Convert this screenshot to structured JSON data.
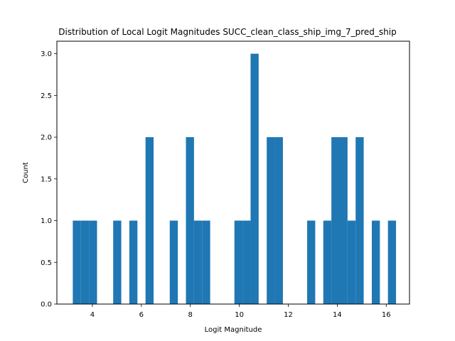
{
  "chart_data": {
    "type": "bar",
    "title": "Distribution of Local Logit Magnitudes SUCC_clean_class_ship_img_7_pred_ship",
    "xlabel": "Logit Magnitude",
    "ylabel": "Count",
    "xlim": [
      2.55,
      16.95
    ],
    "ylim": [
      0,
      3.15
    ],
    "xticks": [
      4,
      6,
      8,
      10,
      12,
      14,
      16
    ],
    "yticks": [
      0.0,
      0.5,
      1.0,
      1.5,
      2.0,
      2.5,
      3.0
    ],
    "bar_color": "#1f77b4",
    "bin_width": 0.33,
    "bins": [
      {
        "x": 3.2,
        "count": 1
      },
      {
        "x": 3.53,
        "count": 1
      },
      {
        "x": 3.86,
        "count": 1
      },
      {
        "x": 4.85,
        "count": 1
      },
      {
        "x": 5.51,
        "count": 1
      },
      {
        "x": 6.17,
        "count": 2
      },
      {
        "x": 7.16,
        "count": 1
      },
      {
        "x": 7.82,
        "count": 2
      },
      {
        "x": 8.15,
        "count": 1
      },
      {
        "x": 8.48,
        "count": 1
      },
      {
        "x": 9.8,
        "count": 1
      },
      {
        "x": 10.13,
        "count": 1
      },
      {
        "x": 10.46,
        "count": 3
      },
      {
        "x": 11.12,
        "count": 2
      },
      {
        "x": 11.45,
        "count": 2
      },
      {
        "x": 12.77,
        "count": 1
      },
      {
        "x": 13.43,
        "count": 1
      },
      {
        "x": 13.76,
        "count": 2
      },
      {
        "x": 14.09,
        "count": 2
      },
      {
        "x": 14.42,
        "count": 1
      },
      {
        "x": 14.75,
        "count": 2
      },
      {
        "x": 15.41,
        "count": 1
      },
      {
        "x": 16.07,
        "count": 1
      }
    ]
  }
}
